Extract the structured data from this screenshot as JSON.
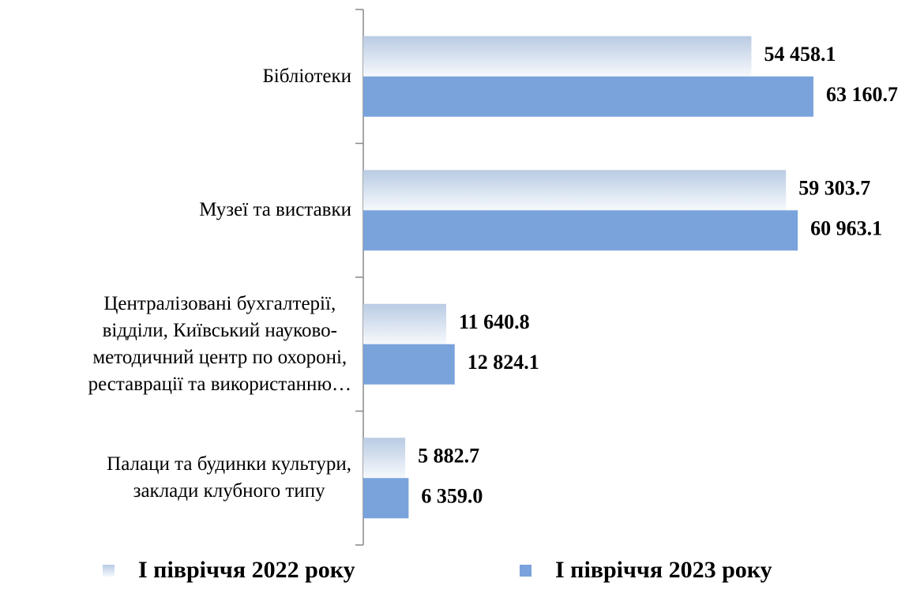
{
  "chart_data": {
    "type": "barh",
    "categories": [
      "Бібліотеки",
      "Музеї та виставки",
      "Централізовані бухгалтерії,\nвідділи, Київський науково-\nметодичний центр по охороні,\nреставрації та використанню…",
      "Палаци та будинки культури,\nзаклади клубного типу"
    ],
    "series": [
      {
        "name": "І півріччя 2022 року",
        "color": "#c3d2e7",
        "values": [
          54458.1,
          59303.7,
          11640.8,
          5882.7
        ],
        "value_labels": [
          "54 458.1",
          "59 303.7",
          "11 640.8",
          "5 882.7"
        ]
      },
      {
        "name": "І півріччя 2023 року",
        "color": "#7aa3dc",
        "values": [
          63160.7,
          60963.1,
          12824.1,
          6359.0
        ],
        "value_labels": [
          "63 160.7",
          "60 963.1",
          "12 824.1",
          "6 359.0"
        ]
      }
    ],
    "legend": "bottom"
  }
}
